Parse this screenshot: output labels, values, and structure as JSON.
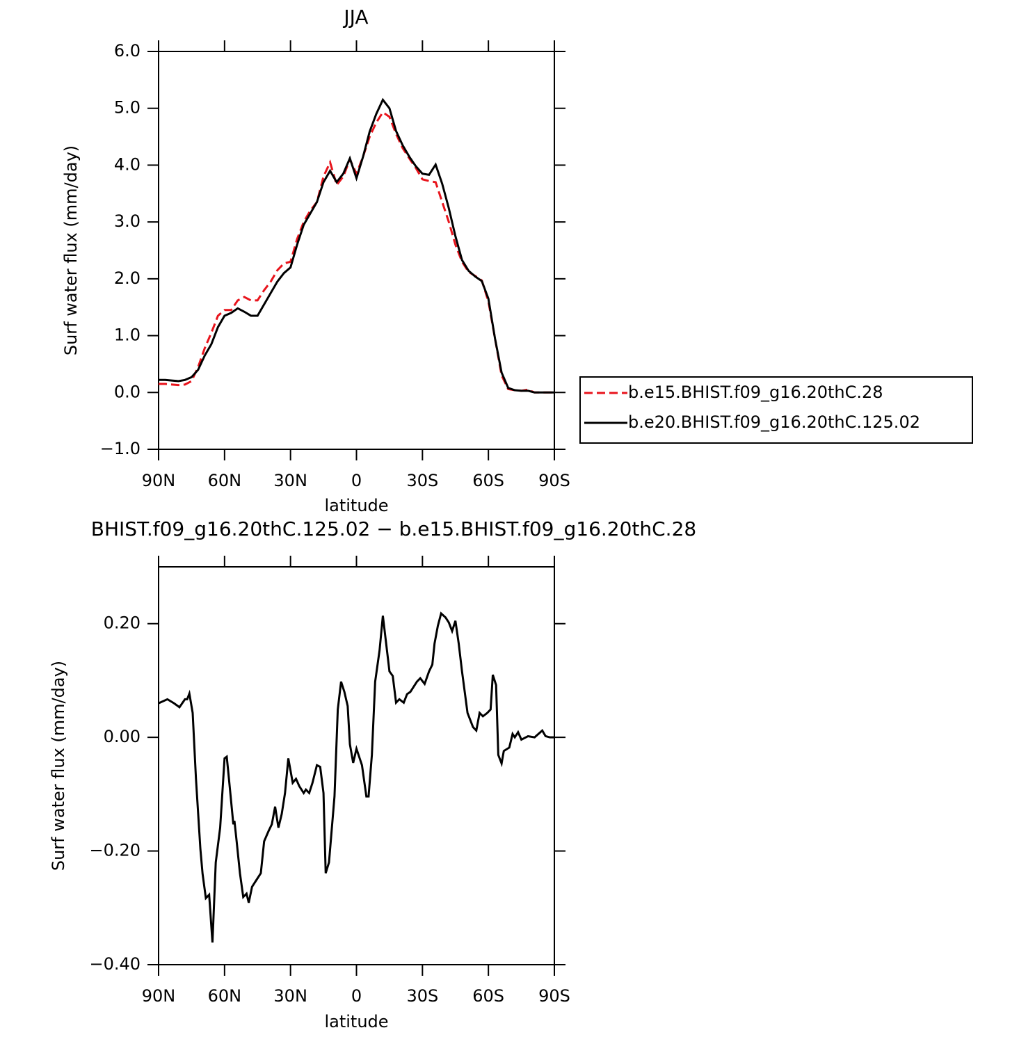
{
  "chart_data": [
    {
      "type": "line",
      "title": "JJA",
      "xlabel": "latitude",
      "ylabel": "Surf water flux (mm/day)",
      "xlim": [
        90,
        -90
      ],
      "ylim": [
        -1.0,
        6.0
      ],
      "xticks": [
        {
          "value": 90,
          "label": "90N"
        },
        {
          "value": 60,
          "label": "60N"
        },
        {
          "value": 30,
          "label": "30N"
        },
        0,
        {
          "value": -30,
          "label": "30S"
        },
        {
          "value": -60,
          "label": "60S"
        },
        {
          "value": -90,
          "label": "90S"
        }
      ],
      "yticks": [
        {
          "value": -1.0,
          "label": "−1.0"
        },
        {
          "value": 0.0,
          "label": "0.0"
        },
        {
          "value": 1.0,
          "label": "1.0"
        },
        {
          "value": 2.0,
          "label": "2.0"
        },
        {
          "value": 3.0,
          "label": "3.0"
        },
        {
          "value": 4.0,
          "label": "4.0"
        },
        {
          "value": 5.0,
          "label": "5.0"
        },
        {
          "value": 6.0,
          "label": "6.0"
        }
      ],
      "grid": false,
      "legend": "right",
      "x": [
        90,
        87,
        84,
        81,
        78,
        75,
        72,
        69,
        66,
        63,
        60,
        57,
        54,
        51,
        48,
        45,
        42,
        39,
        36,
        33,
        30,
        27,
        24,
        21,
        18,
        15,
        12,
        9,
        6,
        3,
        0,
        -3,
        -6,
        -9,
        -12,
        -15,
        -18,
        -21,
        -24,
        -27,
        -30,
        -33,
        -36,
        -39,
        -42,
        -45,
        -48,
        -51,
        -54,
        -57,
        -60,
        -63,
        -66,
        -69,
        -72,
        -75,
        -78,
        -81,
        -84,
        -87,
        -90
      ],
      "series": [
        {
          "name": "b.e15.BHIST.f09_g16.20thC.28",
          "color": "#e8141c",
          "style": "dashed",
          "values": [
            0.15,
            0.15,
            0.14,
            0.13,
            0.14,
            0.2,
            0.45,
            0.78,
            1.05,
            1.35,
            1.45,
            1.45,
            1.62,
            1.68,
            1.62,
            1.62,
            1.8,
            1.95,
            2.15,
            2.27,
            2.3,
            2.7,
            3.0,
            3.2,
            3.35,
            3.8,
            4.05,
            3.65,
            3.8,
            4.1,
            3.85,
            4.15,
            4.5,
            4.75,
            4.93,
            4.85,
            4.55,
            4.3,
            4.12,
            3.95,
            3.75,
            3.72,
            3.7,
            3.35,
            3.0,
            2.6,
            2.3,
            2.12,
            2.05,
            1.97,
            1.6,
            0.95,
            0.3,
            0.06,
            0.04,
            0.03,
            0.05,
            0.0,
            0.0,
            0.0,
            0.0
          ]
        },
        {
          "name": "b.e20.BHIST.f09_g16.20thC.125.02",
          "color": "#000000",
          "style": "solid",
          "values": [
            0.22,
            0.22,
            0.21,
            0.2,
            0.22,
            0.27,
            0.4,
            0.65,
            0.85,
            1.15,
            1.35,
            1.4,
            1.48,
            1.42,
            1.35,
            1.35,
            1.55,
            1.75,
            1.95,
            2.1,
            2.2,
            2.6,
            2.95,
            3.15,
            3.35,
            3.7,
            3.9,
            3.7,
            3.85,
            4.12,
            3.77,
            4.15,
            4.59,
            4.9,
            5.15,
            5.0,
            4.6,
            4.35,
            4.15,
            3.98,
            3.85,
            3.83,
            4.01,
            3.67,
            3.24,
            2.75,
            2.33,
            2.14,
            2.04,
            1.96,
            1.65,
            0.95,
            0.35,
            0.08,
            0.04,
            0.03,
            0.03,
            0.0,
            0.0,
            0.0,
            0.0
          ]
        }
      ]
    },
    {
      "type": "line",
      "title": "BHIST.f09_g16.20thC.125.02 − b.e15.BHIST.f09_g16.20thC.28",
      "xlabel": "latitude",
      "ylabel": "Surf water flux (mm/day)",
      "xlim": [
        90,
        -90
      ],
      "ylim": [
        -0.4,
        0.3
      ],
      "xticks": [
        {
          "value": 90,
          "label": "90N"
        },
        {
          "value": 60,
          "label": "60N"
        },
        {
          "value": 30,
          "label": "30N"
        },
        0,
        {
          "value": -30,
          "label": "30S"
        },
        {
          "value": -60,
          "label": "60S"
        },
        {
          "value": -90,
          "label": "90S"
        }
      ],
      "yticks": [
        {
          "value": -0.4,
          "label": "−0.40"
        },
        {
          "value": -0.2,
          "label": "−0.20"
        },
        {
          "value": 0.0,
          "label": "0.00"
        },
        {
          "value": 0.2,
          "label": "0.20"
        }
      ],
      "grid": false,
      "color": "#000000",
      "x": [
        90,
        86,
        83,
        80.5,
        78,
        77,
        76,
        74.5,
        73,
        71,
        70,
        68.5,
        67,
        65.5,
        64,
        62,
        60,
        59,
        58,
        56,
        55.5,
        54.5,
        53,
        51.5,
        50,
        49,
        47.5,
        45.5,
        43.5,
        42,
        40,
        38.5,
        37,
        35.5,
        34,
        32.5,
        31,
        29,
        27.5,
        26,
        24,
        23,
        21.5,
        20,
        18,
        16.5,
        15,
        14,
        12.5,
        10,
        8.5,
        7,
        5.5,
        4,
        3,
        1.5,
        0,
        -2.5,
        -4.5,
        -5.5,
        -7,
        -8.5,
        -10.5,
        -12,
        -13.5,
        -15,
        -16.5,
        -18,
        -19.5,
        -21.5,
        -23,
        -24.5,
        -27.5,
        -29,
        -31,
        -33,
        -34.5,
        -35.5,
        -37,
        -38.5,
        -40.5,
        -42,
        -43.5,
        -45,
        -46.5,
        -48,
        -50.5,
        -53,
        -54.5,
        -56,
        -57.5,
        -59.5,
        -61,
        -62,
        -63.5,
        -64.5,
        -66,
        -67,
        -69.5,
        -71,
        -72,
        -73.5,
        -75,
        -78,
        -81,
        -84.5,
        -86,
        -88,
        -90
      ],
      "values": [
        0.06,
        0.067,
        0.06,
        0.053,
        0.067,
        0.067,
        0.077,
        0.043,
        -0.073,
        -0.196,
        -0.24,
        -0.283,
        -0.277,
        -0.361,
        -0.22,
        -0.159,
        -0.037,
        -0.034,
        -0.073,
        -0.153,
        -0.147,
        -0.183,
        -0.239,
        -0.281,
        -0.275,
        -0.291,
        -0.263,
        -0.251,
        -0.239,
        -0.183,
        -0.165,
        -0.153,
        -0.122,
        -0.159,
        -0.135,
        -0.098,
        -0.037,
        -0.08,
        -0.073,
        -0.086,
        -0.098,
        -0.092,
        -0.098,
        -0.08,
        -0.049,
        -0.052,
        -0.098,
        -0.239,
        -0.22,
        -0.104,
        0.049,
        0.098,
        0.08,
        0.055,
        -0.012,
        -0.045,
        -0.02,
        -0.049,
        -0.104,
        -0.104,
        -0.031,
        0.098,
        0.153,
        0.214,
        0.165,
        0.116,
        0.108,
        0.061,
        0.067,
        0.061,
        0.076,
        0.08,
        0.098,
        0.104,
        0.094,
        0.116,
        0.128,
        0.165,
        0.196,
        0.218,
        0.211,
        0.202,
        0.187,
        0.205,
        0.165,
        0.116,
        0.043,
        0.018,
        0.012,
        0.043,
        0.037,
        0.043,
        0.049,
        0.11,
        0.092,
        -0.031,
        -0.046,
        -0.024,
        -0.018,
        0.006,
        0.0,
        0.009,
        -0.004,
        0.002,
        0.0,
        0.012,
        0.002,
        0.0,
        0.0
      ]
    }
  ]
}
